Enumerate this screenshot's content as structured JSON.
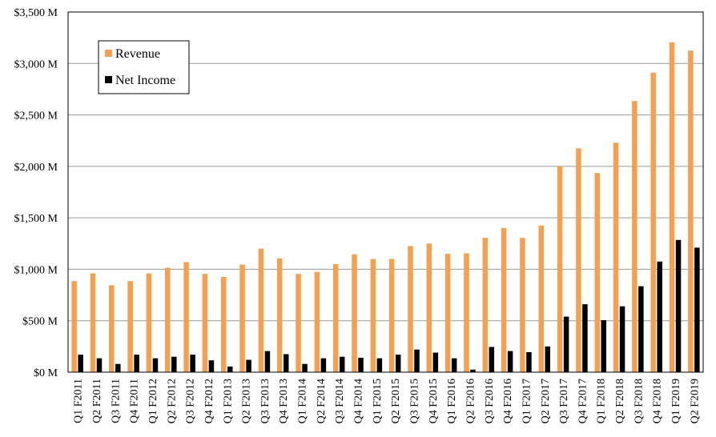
{
  "chart_data": {
    "type": "bar",
    "title": "",
    "xlabel": "",
    "ylabel": "",
    "ylim": [
      0,
      3500
    ],
    "y_ticks": [
      0,
      500,
      1000,
      1500,
      2000,
      2500,
      3000,
      3500
    ],
    "y_tick_labels": [
      "$0 M",
      "$500 M",
      "$1,000 M",
      "$1,500 M",
      "$2,000 M",
      "$2,500 M",
      "$3,000 M",
      "$3,500 M"
    ],
    "grid": "horizontal",
    "legend_position": "top-left",
    "categories": [
      "Q1 F2011",
      "Q2 F2011",
      "Q3 F2011",
      "Q4 F2011",
      "Q1 F2012",
      "Q2 F2012",
      "Q3 F2012",
      "Q4 F2012",
      "Q1 F2013",
      "Q2 F2013",
      "Q3 F2013",
      "Q4 F2013",
      "Q1 F2014",
      "Q2 F2014",
      "Q3 F2014",
      "Q4 F2014",
      "Q1 F2015",
      "Q2 F2015",
      "Q3 F2015",
      "Q4 F2015",
      "Q1 F2016",
      "Q2 F2016",
      "Q3 F2016",
      "Q4 F2016",
      "Q1 F2017",
      "Q2 F2017",
      "Q3 F2017",
      "Q4 F2017",
      "Q1 F2018",
      "Q2 F2018",
      "Q3 F2018",
      "Q4 F2018",
      "Q1 F2019",
      "Q2 F2019"
    ],
    "series": [
      {
        "name": "Revenue",
        "color": "#f4a050",
        "values": [
          885,
          960,
          845,
          885,
          960,
          1015,
          1070,
          955,
          925,
          1045,
          1200,
          1105,
          955,
          975,
          1050,
          1145,
          1100,
          1100,
          1225,
          1250,
          1150,
          1155,
          1305,
          1400,
          1305,
          1425,
          2000,
          2175,
          1935,
          2230,
          2635,
          2910,
          3205,
          3125
        ]
      },
      {
        "name": "Net Income",
        "color": "#000000",
        "values": [
          170,
          135,
          80,
          170,
          135,
          150,
          170,
          115,
          55,
          120,
          205,
          175,
          80,
          135,
          150,
          140,
          135,
          170,
          220,
          190,
          135,
          25,
          245,
          205,
          195,
          250,
          540,
          660,
          505,
          640,
          835,
          1075,
          1285,
          1210
        ]
      }
    ]
  }
}
